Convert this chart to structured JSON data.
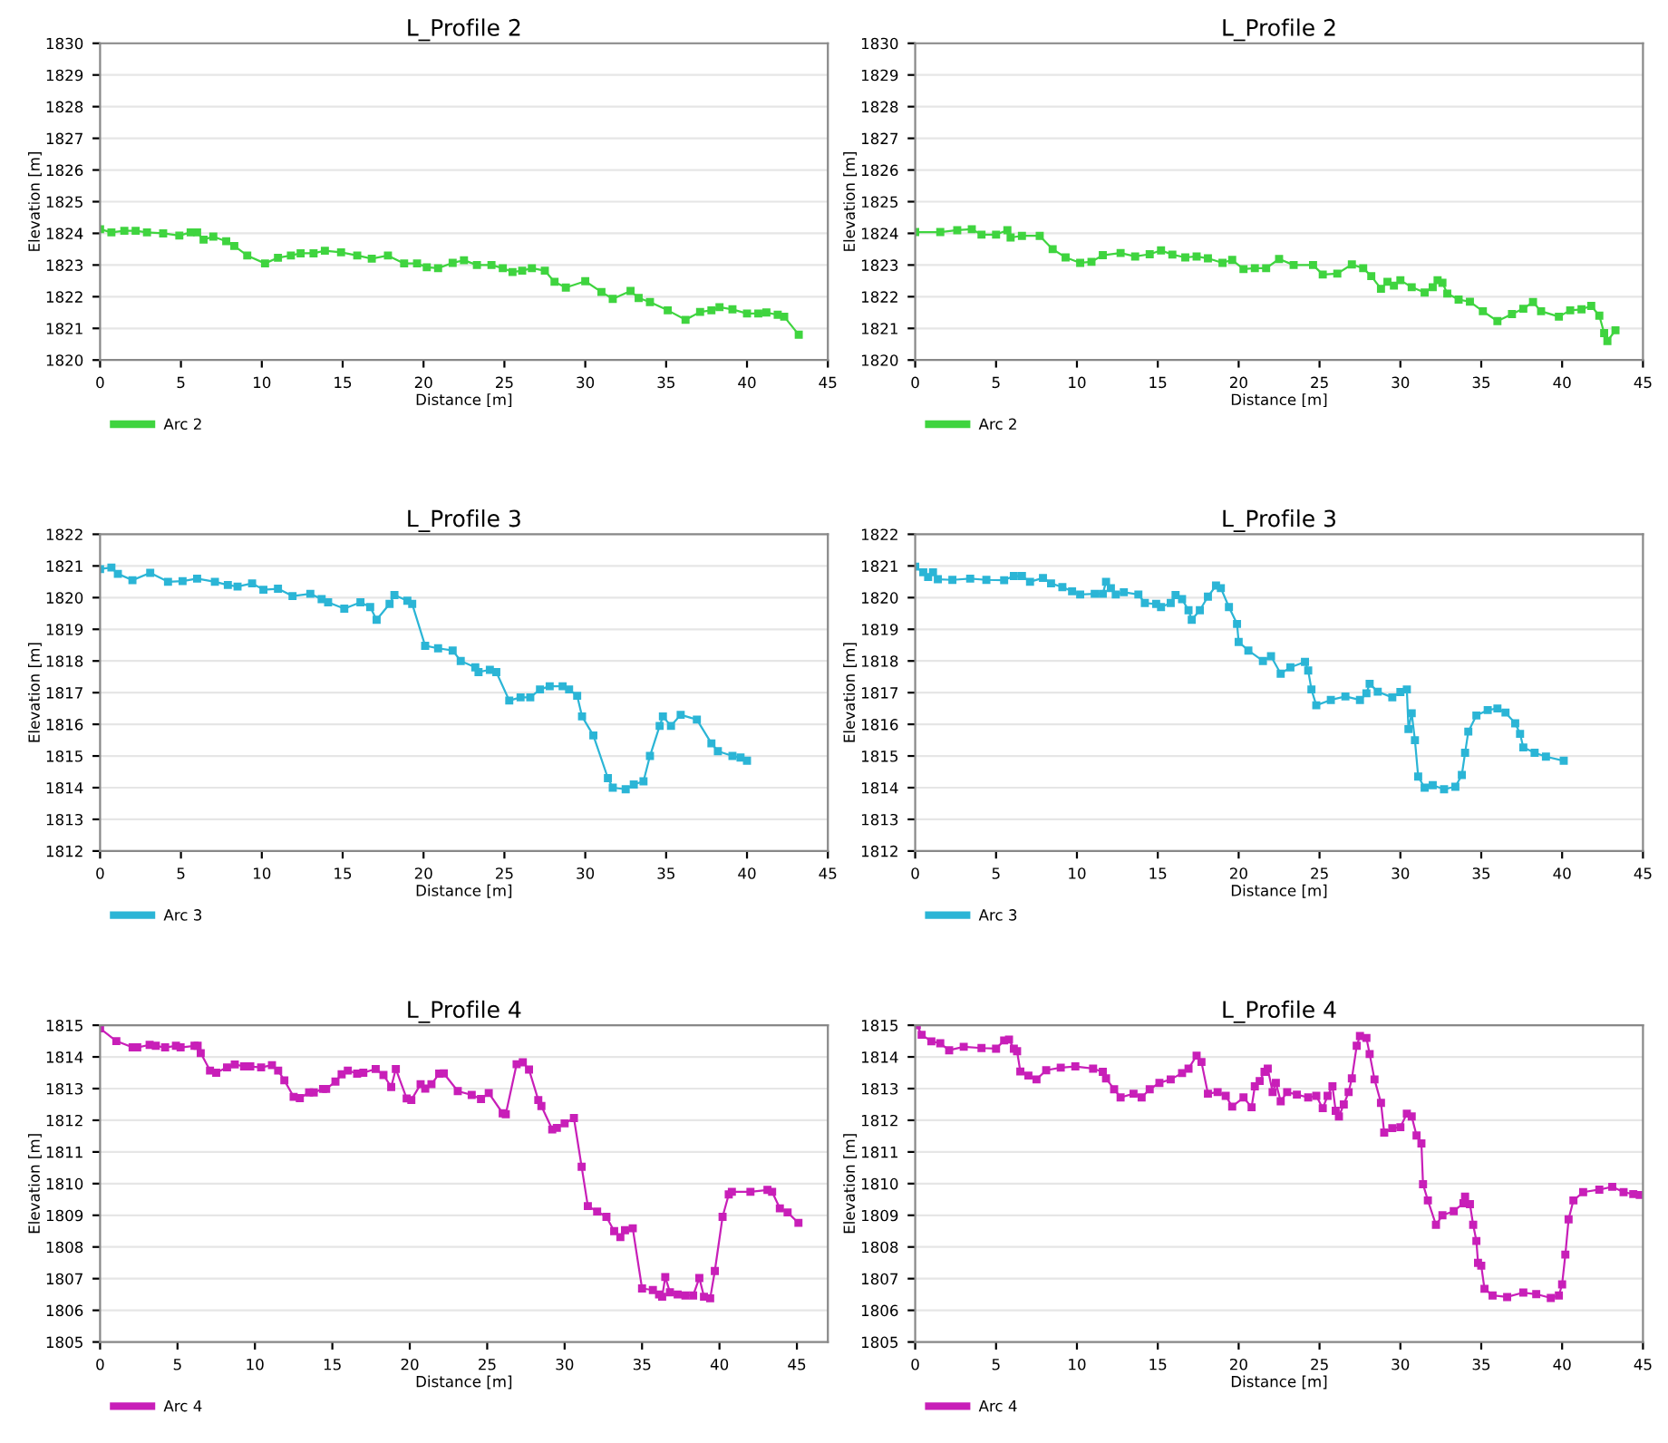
{
  "chart_data": [
    {
      "type": "line",
      "title": "L_Profile 2",
      "xlabel": "Distance [m]",
      "ylabel": "Elevation [m]",
      "xlim": [
        0,
        45
      ],
      "xticks": [
        0,
        5,
        10,
        15,
        20,
        25,
        30,
        35,
        40,
        45
      ],
      "ylim": [
        1820,
        1830
      ],
      "yticks": [
        1820,
        1821,
        1822,
        1823,
        1824,
        1825,
        1826,
        1827,
        1828,
        1829,
        1830
      ],
      "grid": "y",
      "legend": "bottom left",
      "marker": "square",
      "line_style": "solid",
      "series": [
        {
          "name": "Arc 2",
          "color": "#3fd43f",
          "x": [
            0,
            0.7,
            1.5,
            2.2,
            2.9,
            3.9,
            4.9,
            5.6,
            6.0,
            6.4,
            7.0,
            7.8,
            8.3,
            9.1,
            10.2,
            11.0,
            11.8,
            12.4,
            13.2,
            13.9,
            14.9,
            15.9,
            16.8,
            17.8,
            18.8,
            19.6,
            20.2,
            20.9,
            21.8,
            22.5,
            23.3,
            24.2,
            24.9,
            25.5,
            26.1,
            26.7,
            27.5,
            28.1,
            28.8,
            30.0,
            31.0,
            31.7,
            32.8,
            33.3,
            34.0,
            35.1,
            36.2,
            37.1,
            37.8,
            38.3,
            39.1,
            40.0,
            40.7,
            41.2,
            41.9,
            42.3,
            43.2
          ],
          "values": [
            1824.13,
            1824.03,
            1824.08,
            1824.08,
            1824.03,
            1824.0,
            1823.93,
            1824.03,
            1824.03,
            1823.8,
            1823.9,
            1823.75,
            1823.6,
            1823.3,
            1823.05,
            1823.23,
            1823.3,
            1823.37,
            1823.37,
            1823.45,
            1823.4,
            1823.3,
            1823.2,
            1823.3,
            1823.05,
            1823.05,
            1822.93,
            1822.9,
            1823.07,
            1823.15,
            1823.0,
            1823.0,
            1822.9,
            1822.78,
            1822.82,
            1822.9,
            1822.82,
            1822.47,
            1822.29,
            1822.49,
            1822.15,
            1821.93,
            1822.18,
            1821.96,
            1821.83,
            1821.57,
            1821.27,
            1821.52,
            1821.57,
            1821.67,
            1821.6,
            1821.47,
            1821.47,
            1821.5,
            1821.43,
            1821.37,
            1820.8
          ]
        }
      ]
    },
    {
      "type": "line",
      "title": "L_Profile 2",
      "xlabel": "Distance [m]",
      "ylabel": "Elevation [m]",
      "xlim": [
        0,
        45
      ],
      "xticks": [
        0,
        5,
        10,
        15,
        20,
        25,
        30,
        35,
        40,
        45
      ],
      "ylim": [
        1820,
        1830
      ],
      "yticks": [
        1820,
        1821,
        1822,
        1823,
        1824,
        1825,
        1826,
        1827,
        1828,
        1829,
        1830
      ],
      "grid": "y",
      "legend": "bottom left",
      "marker": "square",
      "line_style": "solid",
      "series": [
        {
          "name": "Arc 2",
          "color": "#3fd43f",
          "x": [
            0,
            1.55,
            2.6,
            3.5,
            4.1,
            5.0,
            5.7,
            5.9,
            6.6,
            7.7,
            8.5,
            9.3,
            10.2,
            10.9,
            11.6,
            12.7,
            13.6,
            14.5,
            15.2,
            15.9,
            16.7,
            17.4,
            18.1,
            19.0,
            19.6,
            20.3,
            21.0,
            21.7,
            22.5,
            23.4,
            24.6,
            25.2,
            26.1,
            27.0,
            27.7,
            28.2,
            28.8,
            29.2,
            29.6,
            30.0,
            30.7,
            31.5,
            32.0,
            32.3,
            32.6,
            32.9,
            33.6,
            34.3,
            35.1,
            36.0,
            36.9,
            37.6,
            38.2,
            38.7,
            39.8,
            40.5,
            41.2,
            41.8,
            42.3,
            42.6,
            42.8,
            43.3
          ],
          "values": [
            1824.04,
            1824.04,
            1824.1,
            1824.13,
            1823.96,
            1823.96,
            1824.1,
            1823.87,
            1823.92,
            1823.92,
            1823.5,
            1823.24,
            1823.07,
            1823.1,
            1823.31,
            1823.38,
            1823.27,
            1823.34,
            1823.46,
            1823.33,
            1823.24,
            1823.27,
            1823.21,
            1823.07,
            1823.16,
            1822.87,
            1822.9,
            1822.9,
            1823.19,
            1823.0,
            1823.0,
            1822.7,
            1822.73,
            1823.02,
            1822.9,
            1822.65,
            1822.25,
            1822.47,
            1822.35,
            1822.52,
            1822.3,
            1822.13,
            1822.3,
            1822.52,
            1822.44,
            1822.1,
            1821.91,
            1821.84,
            1821.54,
            1821.23,
            1821.45,
            1821.62,
            1821.83,
            1821.54,
            1821.37,
            1821.57,
            1821.6,
            1821.71,
            1821.4,
            1820.85,
            1820.6,
            1820.94
          ]
        }
      ]
    },
    {
      "type": "line",
      "title": "L_Profile 3",
      "xlabel": "Distance [m]",
      "ylabel": "Elevation [m]",
      "xlim": [
        0,
        45
      ],
      "xticks": [
        0,
        5,
        10,
        15,
        20,
        25,
        30,
        35,
        40,
        45
      ],
      "ylim": [
        1812,
        1822
      ],
      "yticks": [
        1812,
        1813,
        1814,
        1815,
        1816,
        1817,
        1818,
        1819,
        1820,
        1821,
        1822
      ],
      "grid": "y",
      "legend": "bottom left",
      "marker": "square",
      "line_style": "solid",
      "series": [
        {
          "name": "Arc 3",
          "color": "#2bb5d6",
          "x": [
            0,
            0.7,
            1.1,
            2.0,
            3.1,
            4.2,
            5.1,
            6.0,
            7.1,
            7.9,
            8.5,
            9.4,
            10.1,
            11.0,
            11.9,
            13.0,
            13.7,
            14.1,
            15.1,
            16.1,
            16.7,
            17.1,
            17.9,
            18.2,
            19.0,
            19.3,
            20.1,
            20.9,
            21.8,
            22.3,
            23.2,
            23.4,
            24.1,
            24.5,
            25.3,
            26.0,
            26.6,
            27.2,
            27.8,
            28.6,
            29.0,
            29.5,
            29.8,
            30.5,
            31.4,
            31.7,
            32.5,
            33.0,
            33.6,
            34.0,
            34.6,
            34.8,
            35.3,
            35.9,
            36.9,
            37.8,
            38.2,
            39.1,
            39.6,
            40.0
          ],
          "values": [
            1820.9,
            1820.95,
            1820.75,
            1820.55,
            1820.78,
            1820.5,
            1820.52,
            1820.6,
            1820.5,
            1820.4,
            1820.35,
            1820.45,
            1820.25,
            1820.28,
            1820.05,
            1820.12,
            1819.95,
            1819.85,
            1819.65,
            1819.85,
            1819.7,
            1819.3,
            1819.8,
            1820.08,
            1819.9,
            1819.8,
            1818.48,
            1818.4,
            1818.33,
            1818.0,
            1817.8,
            1817.65,
            1817.72,
            1817.65,
            1816.75,
            1816.85,
            1816.85,
            1817.1,
            1817.2,
            1817.2,
            1817.1,
            1816.9,
            1816.25,
            1815.65,
            1814.3,
            1814.0,
            1813.95,
            1814.1,
            1814.2,
            1815.0,
            1815.95,
            1816.25,
            1815.95,
            1816.3,
            1816.15,
            1815.4,
            1815.15,
            1815.0,
            1814.95,
            1814.85
          ]
        }
      ]
    },
    {
      "type": "line",
      "title": "L_Profile 3",
      "xlabel": "Distance [m]",
      "ylabel": "Elevation [m]",
      "xlim": [
        0,
        45
      ],
      "xticks": [
        0,
        5,
        10,
        15,
        20,
        25,
        30,
        35,
        40,
        45
      ],
      "ylim": [
        1812,
        1822
      ],
      "yticks": [
        1812,
        1813,
        1814,
        1815,
        1816,
        1817,
        1818,
        1819,
        1820,
        1821,
        1822
      ],
      "grid": "y",
      "legend": "bottom left",
      "marker": "square",
      "line_style": "solid",
      "series": [
        {
          "name": "Arc 3",
          "color": "#2bb5d6",
          "x": [
            0,
            0.5,
            0.8,
            1.1,
            1.4,
            2.3,
            3.4,
            4.4,
            5.5,
            6.1,
            6.6,
            7.1,
            7.9,
            8.4,
            9.1,
            9.7,
            10.2,
            11.1,
            11.6,
            11.8,
            12.1,
            12.4,
            12.9,
            13.8,
            14.2,
            14.9,
            15.2,
            15.8,
            16.1,
            16.5,
            16.9,
            17.1,
            17.6,
            18.1,
            18.6,
            18.9,
            19.4,
            19.9,
            20.0,
            20.6,
            21.5,
            22.0,
            22.6,
            23.2,
            24.1,
            24.3,
            24.5,
            24.8,
            25.7,
            26.6,
            27.5,
            27.9,
            28.1,
            28.6,
            29.5,
            30.0,
            30.4,
            30.5,
            30.7,
            30.9,
            31.1,
            31.5,
            32.0,
            32.7,
            33.4,
            33.8,
            34.0,
            34.2,
            34.7,
            35.4,
            36.0,
            36.5,
            37.1,
            37.4,
            37.6,
            38.3,
            39.0,
            40.1
          ],
          "values": [
            1820.98,
            1820.8,
            1820.65,
            1820.8,
            1820.58,
            1820.56,
            1820.6,
            1820.56,
            1820.55,
            1820.68,
            1820.68,
            1820.5,
            1820.62,
            1820.45,
            1820.33,
            1820.2,
            1820.1,
            1820.12,
            1820.12,
            1820.5,
            1820.3,
            1820.1,
            1820.17,
            1820.1,
            1819.83,
            1819.8,
            1819.7,
            1819.83,
            1820.08,
            1819.95,
            1819.6,
            1819.3,
            1819.6,
            1820.03,
            1820.38,
            1820.3,
            1819.7,
            1819.17,
            1818.6,
            1818.33,
            1818.0,
            1818.15,
            1817.6,
            1817.8,
            1817.97,
            1817.7,
            1817.1,
            1816.6,
            1816.77,
            1816.88,
            1816.77,
            1816.98,
            1817.28,
            1817.03,
            1816.85,
            1817.02,
            1817.1,
            1815.85,
            1816.35,
            1815.5,
            1814.35,
            1814.0,
            1814.08,
            1813.95,
            1814.03,
            1814.4,
            1815.1,
            1815.77,
            1816.28,
            1816.45,
            1816.5,
            1816.37,
            1816.03,
            1815.7,
            1815.27,
            1815.1,
            1814.98,
            1814.85
          ]
        }
      ]
    },
    {
      "type": "line",
      "title": "L_Profile 4",
      "xlabel": "Distance [m]",
      "ylabel": "Elevation [m]",
      "xlim": [
        0,
        47
      ],
      "xticks": [
        0,
        5,
        10,
        15,
        20,
        25,
        30,
        35,
        40,
        45
      ],
      "ylim": [
        1805,
        1815
      ],
      "yticks": [
        1805,
        1806,
        1807,
        1808,
        1809,
        1810,
        1811,
        1812,
        1813,
        1814,
        1815
      ],
      "grid": "y",
      "legend": "bottom left",
      "marker": "square",
      "line_style": "solid",
      "series": [
        {
          "name": "Arc 4",
          "color": "#c81fb8",
          "x": [
            0,
            1.05,
            2.1,
            2.4,
            3.2,
            3.6,
            4.2,
            4.9,
            5.2,
            6.1,
            6.3,
            6.5,
            7.1,
            7.5,
            8.2,
            8.7,
            9.3,
            9.7,
            10.4,
            11.1,
            11.5,
            11.9,
            12.5,
            12.9,
            13.5,
            13.8,
            14.4,
            14.6,
            15.2,
            15.6,
            16.0,
            16.6,
            17.0,
            17.8,
            18.3,
            18.8,
            19.1,
            19.8,
            20.1,
            20.7,
            21.0,
            21.4,
            21.9,
            22.2,
            23.1,
            24.0,
            24.6,
            25.1,
            26.0,
            26.2,
            26.9,
            27.3,
            27.7,
            28.3,
            28.5,
            29.2,
            29.5,
            30.0,
            30.6,
            31.1,
            31.5,
            32.1,
            32.7,
            33.2,
            33.6,
            33.9,
            34.4,
            35.0,
            35.7,
            36.1,
            36.3,
            36.5,
            36.8,
            37.3,
            37.8,
            38.3,
            38.7,
            39.0,
            39.4,
            39.7,
            40.2,
            40.6,
            40.8,
            42.0,
            43.1,
            43.4,
            43.9,
            44.4,
            45.1
          ],
          "values": [
            1814.9,
            1814.5,
            1814.3,
            1814.3,
            1814.38,
            1814.35,
            1814.3,
            1814.35,
            1814.3,
            1814.35,
            1814.35,
            1814.12,
            1813.57,
            1813.5,
            1813.67,
            1813.76,
            1813.7,
            1813.7,
            1813.67,
            1813.74,
            1813.57,
            1813.26,
            1812.74,
            1812.7,
            1812.88,
            1812.88,
            1812.99,
            1812.99,
            1813.22,
            1813.45,
            1813.57,
            1813.47,
            1813.5,
            1813.62,
            1813.43,
            1813.05,
            1813.62,
            1812.69,
            1812.64,
            1813.14,
            1813.0,
            1813.14,
            1813.47,
            1813.48,
            1812.92,
            1812.8,
            1812.67,
            1812.86,
            1812.22,
            1812.19,
            1813.77,
            1813.83,
            1813.6,
            1812.64,
            1812.45,
            1811.71,
            1811.76,
            1811.9,
            1812.07,
            1810.53,
            1809.29,
            1809.12,
            1808.95,
            1808.5,
            1808.31,
            1808.53,
            1808.59,
            1806.69,
            1806.64,
            1806.5,
            1806.43,
            1807.05,
            1806.57,
            1806.5,
            1806.47,
            1806.47,
            1807.02,
            1806.43,
            1806.38,
            1807.24,
            1808.95,
            1809.66,
            1809.74,
            1809.74,
            1809.8,
            1809.74,
            1809.22,
            1809.09,
            1808.76
          ]
        }
      ]
    },
    {
      "type": "line",
      "title": "L_Profile 4",
      "xlabel": "Distance [m]",
      "ylabel": "Elevation [m]",
      "xlim": [
        0,
        45
      ],
      "xticks": [
        0,
        5,
        10,
        15,
        20,
        25,
        30,
        35,
        40,
        45
      ],
      "ylim": [
        1805,
        1815
      ],
      "yticks": [
        1805,
        1806,
        1807,
        1808,
        1809,
        1810,
        1811,
        1812,
        1813,
        1814,
        1815
      ],
      "grid": "y",
      "legend": "bottom left",
      "marker": "square",
      "line_style": "solid",
      "series": [
        {
          "name": "Arc 4",
          "color": "#c81fb8",
          "x": [
            0.1,
            0.4,
            1.0,
            1.55,
            2.1,
            3.0,
            4.1,
            5.0,
            5.5,
            5.8,
            6.1,
            6.3,
            6.5,
            7.0,
            7.5,
            8.1,
            9.0,
            9.9,
            11.0,
            11.6,
            11.8,
            12.3,
            12.7,
            13.5,
            14.0,
            14.5,
            15.1,
            15.8,
            16.5,
            16.9,
            17.4,
            17.7,
            18.1,
            18.7,
            19.2,
            19.6,
            20.3,
            20.8,
            21.0,
            21.3,
            21.6,
            21.8,
            22.1,
            22.3,
            22.6,
            23.0,
            23.6,
            24.3,
            24.8,
            25.2,
            25.5,
            25.8,
            26.0,
            26.2,
            26.5,
            26.8,
            27.0,
            27.3,
            27.5,
            27.9,
            28.1,
            28.4,
            28.8,
            29.0,
            29.5,
            30.0,
            30.4,
            30.7,
            31.0,
            31.3,
            31.4,
            31.7,
            32.2,
            32.6,
            33.3,
            33.9,
            34.0,
            34.3,
            34.5,
            34.7,
            34.8,
            35.0,
            35.2,
            35.7,
            36.6,
            37.6,
            38.4,
            39.3,
            39.8,
            40.0,
            40.2,
            40.4,
            40.7,
            41.3,
            42.3,
            43.1,
            43.8,
            44.4,
            44.8
          ],
          "values": [
            1815.0,
            1814.7,
            1814.49,
            1814.43,
            1814.21,
            1814.32,
            1814.28,
            1814.26,
            1814.52,
            1814.55,
            1814.26,
            1814.18,
            1813.54,
            1813.41,
            1813.29,
            1813.58,
            1813.66,
            1813.7,
            1813.63,
            1813.53,
            1813.32,
            1812.98,
            1812.72,
            1812.84,
            1812.72,
            1812.98,
            1813.18,
            1813.29,
            1813.49,
            1813.63,
            1814.04,
            1813.84,
            1812.84,
            1812.89,
            1812.77,
            1812.43,
            1812.72,
            1812.41,
            1813.07,
            1813.24,
            1813.53,
            1813.63,
            1812.89,
            1813.18,
            1812.6,
            1812.89,
            1812.81,
            1812.72,
            1812.77,
            1812.38,
            1812.77,
            1813.07,
            1812.3,
            1812.12,
            1812.5,
            1812.89,
            1813.32,
            1814.35,
            1814.66,
            1814.6,
            1814.09,
            1813.29,
            1812.55,
            1811.61,
            1811.75,
            1811.78,
            1812.21,
            1812.12,
            1811.52,
            1811.27,
            1809.98,
            1809.47,
            1808.7,
            1809.0,
            1809.13,
            1809.38,
            1809.59,
            1809.35,
            1808.7,
            1808.19,
            1807.5,
            1807.41,
            1806.68,
            1806.47,
            1806.42,
            1806.56,
            1806.51,
            1806.39,
            1806.47,
            1806.82,
            1807.76,
            1808.87,
            1809.47,
            1809.73,
            1809.81,
            1809.9,
            1809.73,
            1809.67,
            1809.64
          ]
        }
      ]
    }
  ]
}
